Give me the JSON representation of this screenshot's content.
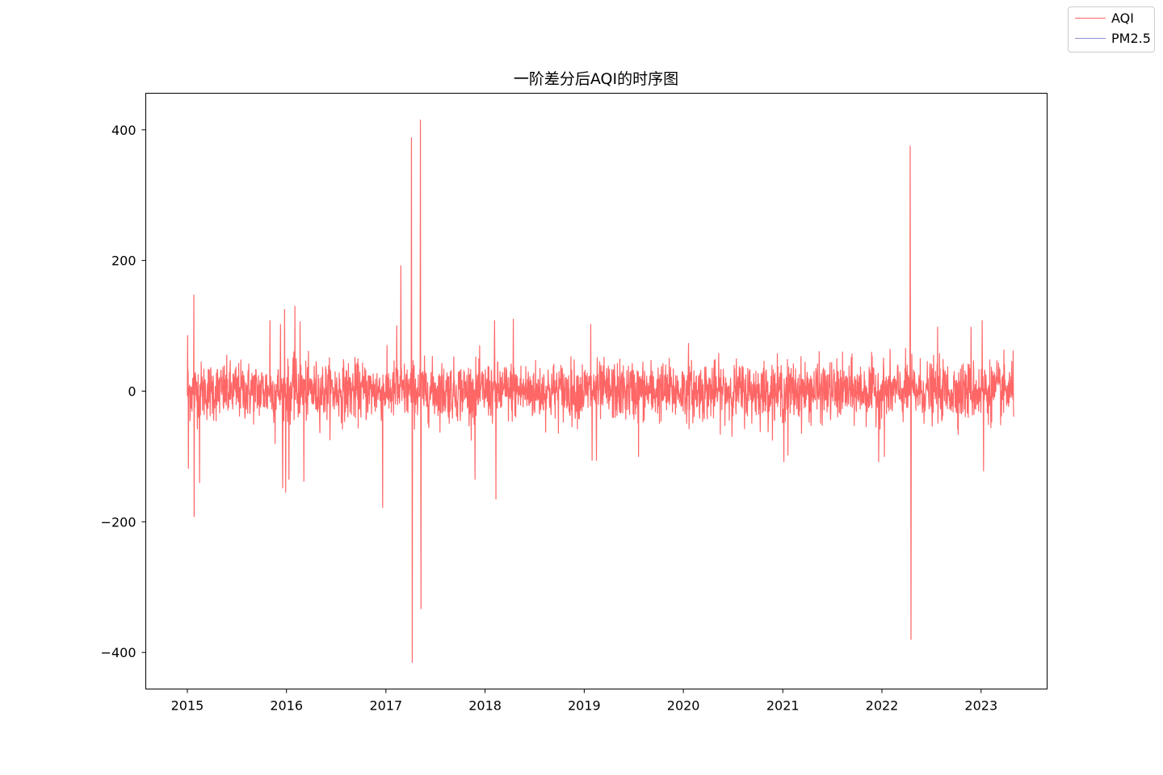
{
  "legend": {
    "items": [
      {
        "label": "AQI",
        "color": "#ff6666"
      },
      {
        "label": "PM2.5",
        "color": "#8a8fd0"
      }
    ]
  },
  "chart_data": {
    "type": "line",
    "title": "一阶差分后AQI的时序图",
    "xlabel": "",
    "ylabel": "",
    "x_ticks": [
      "2015",
      "2016",
      "2017",
      "2018",
      "2019",
      "2020",
      "2021",
      "2022",
      "2023"
    ],
    "y_ticks": [
      "400",
      "200",
      "0",
      "−200",
      "−400"
    ],
    "xlim": [
      "2014-08-01",
      "2023-09-01"
    ],
    "ylim": [
      -456,
      456
    ],
    "x_start": "2015-01-01",
    "x_end": "2023-05-01",
    "grid": false,
    "legend_position": "top-right (outside plot)",
    "series": [
      {
        "name": "AQI",
        "color": "#ff6666",
        "baseline_amplitude": 40,
        "spikes": [
          {
            "date": "2015-01-02",
            "value": 85
          },
          {
            "date": "2015-01-05",
            "value": -118
          },
          {
            "date": "2015-01-25",
            "value": 147
          },
          {
            "date": "2015-01-26",
            "value": -192
          },
          {
            "date": "2015-02-15",
            "value": -140
          },
          {
            "date": "2015-11-01",
            "value": 108
          },
          {
            "date": "2015-11-20",
            "value": -80
          },
          {
            "date": "2015-12-10",
            "value": 102
          },
          {
            "date": "2015-12-18",
            "value": -148
          },
          {
            "date": "2015-12-25",
            "value": 125
          },
          {
            "date": "2015-12-29",
            "value": -155
          },
          {
            "date": "2016-01-10",
            "value": -135
          },
          {
            "date": "2016-02-01",
            "value": 130
          },
          {
            "date": "2016-02-20",
            "value": 106
          },
          {
            "date": "2016-03-05",
            "value": -138
          },
          {
            "date": "2016-12-20",
            "value": -178
          },
          {
            "date": "2017-02-10",
            "value": 100
          },
          {
            "date": "2017-02-25",
            "value": 192
          },
          {
            "date": "2017-04-05",
            "value": 388
          },
          {
            "date": "2017-04-08",
            "value": -415
          },
          {
            "date": "2017-05-08",
            "value": 415
          },
          {
            "date": "2017-05-10",
            "value": -333
          },
          {
            "date": "2017-11-25",
            "value": -135
          },
          {
            "date": "2018-02-10",
            "value": -165
          },
          {
            "date": "2018-02-05",
            "value": 108
          },
          {
            "date": "2018-04-15",
            "value": 110
          },
          {
            "date": "2019-01-25",
            "value": 102
          },
          {
            "date": "2019-01-30",
            "value": -106
          },
          {
            "date": "2019-02-15",
            "value": -106
          },
          {
            "date": "2019-07-20",
            "value": -100
          },
          {
            "date": "2020-01-20",
            "value": 73
          },
          {
            "date": "2021-01-05",
            "value": -108
          },
          {
            "date": "2021-01-20",
            "value": -98
          },
          {
            "date": "2021-12-20",
            "value": -108
          },
          {
            "date": "2022-01-10",
            "value": -100
          },
          {
            "date": "2022-04-15",
            "value": 375
          },
          {
            "date": "2022-04-18",
            "value": -380
          },
          {
            "date": "2022-07-25",
            "value": 98
          },
          {
            "date": "2022-11-25",
            "value": 98
          },
          {
            "date": "2023-01-05",
            "value": 108
          },
          {
            "date": "2023-01-10",
            "value": -122
          }
        ]
      },
      {
        "name": "PM2.5",
        "color": "#8a8fd0",
        "spikes": []
      }
    ]
  }
}
